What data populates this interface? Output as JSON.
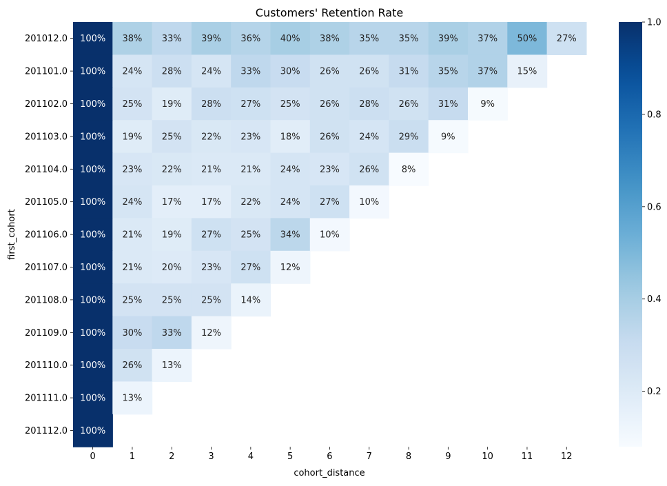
{
  "chart_data": {
    "type": "heatmap",
    "title": "Customers' Retention Rate",
    "xlabel": "cohort_distance",
    "ylabel": "first_cohort",
    "x_categories": [
      "0",
      "1",
      "2",
      "3",
      "4",
      "5",
      "6",
      "7",
      "8",
      "9",
      "10",
      "11",
      "12"
    ],
    "y_categories": [
      "201012.0",
      "201101.0",
      "201102.0",
      "201103.0",
      "201104.0",
      "201105.0",
      "201106.0",
      "201107.0",
      "201108.0",
      "201109.0",
      "201110.0",
      "201111.0",
      "201112.0"
    ],
    "values": [
      [
        1.0,
        0.38,
        0.33,
        0.39,
        0.36,
        0.4,
        0.38,
        0.35,
        0.35,
        0.39,
        0.37,
        0.5,
        0.27
      ],
      [
        1.0,
        0.24,
        0.28,
        0.24,
        0.33,
        0.3,
        0.26,
        0.26,
        0.31,
        0.35,
        0.37,
        0.15,
        null
      ],
      [
        1.0,
        0.25,
        0.19,
        0.28,
        0.27,
        0.25,
        0.26,
        0.28,
        0.26,
        0.31,
        0.09,
        null,
        null
      ],
      [
        1.0,
        0.19,
        0.25,
        0.22,
        0.23,
        0.18,
        0.26,
        0.24,
        0.29,
        0.09,
        null,
        null,
        null
      ],
      [
        1.0,
        0.23,
        0.22,
        0.21,
        0.21,
        0.24,
        0.23,
        0.26,
        0.08,
        null,
        null,
        null,
        null
      ],
      [
        1.0,
        0.24,
        0.17,
        0.17,
        0.22,
        0.24,
        0.27,
        0.1,
        null,
        null,
        null,
        null,
        null
      ],
      [
        1.0,
        0.21,
        0.19,
        0.27,
        0.25,
        0.34,
        0.1,
        null,
        null,
        null,
        null,
        null,
        null
      ],
      [
        1.0,
        0.21,
        0.2,
        0.23,
        0.27,
        0.12,
        null,
        null,
        null,
        null,
        null,
        null,
        null
      ],
      [
        1.0,
        0.25,
        0.25,
        0.25,
        0.14,
        null,
        null,
        null,
        null,
        null,
        null,
        null,
        null
      ],
      [
        1.0,
        0.3,
        0.33,
        0.12,
        null,
        null,
        null,
        null,
        null,
        null,
        null,
        null,
        null
      ],
      [
        1.0,
        0.26,
        0.13,
        null,
        null,
        null,
        null,
        null,
        null,
        null,
        null,
        null,
        null
      ],
      [
        1.0,
        0.13,
        null,
        null,
        null,
        null,
        null,
        null,
        null,
        null,
        null,
        null,
        null
      ],
      [
        1.0,
        null,
        null,
        null,
        null,
        null,
        null,
        null,
        null,
        null,
        null,
        null,
        null
      ]
    ],
    "labels": [
      [
        "100%",
        "38%",
        "33%",
        "39%",
        "36%",
        "40%",
        "38%",
        "35%",
        "35%",
        "39%",
        "37%",
        "50%",
        "27%"
      ],
      [
        "100%",
        "24%",
        "28%",
        "24%",
        "33%",
        "30%",
        "26%",
        "26%",
        "31%",
        "35%",
        "37%",
        "15%",
        ""
      ],
      [
        "100%",
        "25%",
        "19%",
        "28%",
        "27%",
        "25%",
        "26%",
        "28%",
        "26%",
        "31%",
        "9%",
        "",
        ""
      ],
      [
        "100%",
        "19%",
        "25%",
        "22%",
        "23%",
        "18%",
        "26%",
        "24%",
        "29%",
        "9%",
        "",
        "",
        ""
      ],
      [
        "100%",
        "23%",
        "22%",
        "21%",
        "21%",
        "24%",
        "23%",
        "26%",
        "8%",
        "",
        "",
        "",
        ""
      ],
      [
        "100%",
        "24%",
        "17%",
        "17%",
        "22%",
        "24%",
        "27%",
        "10%",
        "",
        "",
        "",
        "",
        ""
      ],
      [
        "100%",
        "21%",
        "19%",
        "27%",
        "25%",
        "34%",
        "10%",
        "",
        "",
        "",
        "",
        "",
        ""
      ],
      [
        "100%",
        "21%",
        "20%",
        "23%",
        "27%",
        "12%",
        "",
        "",
        "",
        "",
        "",
        "",
        ""
      ],
      [
        "100%",
        "25%",
        "25%",
        "25%",
        "14%",
        "",
        "",
        "",
        "",
        "",
        "",
        "",
        ""
      ],
      [
        "100%",
        "30%",
        "33%",
        "12%",
        "",
        "",
        "",
        "",
        "",
        "",
        "",
        "",
        ""
      ],
      [
        "100%",
        "26%",
        "13%",
        "",
        "",
        "",
        "",
        "",
        "",
        "",
        "",
        "",
        ""
      ],
      [
        "100%",
        "13%",
        "",
        "",
        "",
        "",
        "",
        "",
        "",
        "",
        "",
        "",
        ""
      ],
      [
        "100%",
        "",
        "",
        "",
        "",
        "",
        "",
        "",
        "",
        "",
        "",
        "",
        ""
      ]
    ],
    "colormap": "Blues",
    "vmin": 0.08,
    "vmax": 1.0,
    "colorbar_ticks": [
      {
        "value": 0.2,
        "label": "0.2"
      },
      {
        "value": 0.4,
        "label": "0.4"
      },
      {
        "value": 0.6,
        "label": "0.6"
      },
      {
        "value": 0.8,
        "label": "0.8"
      },
      {
        "value": 1.0,
        "label": "1.0"
      }
    ],
    "legend": "colorbar-right",
    "grid": false
  }
}
